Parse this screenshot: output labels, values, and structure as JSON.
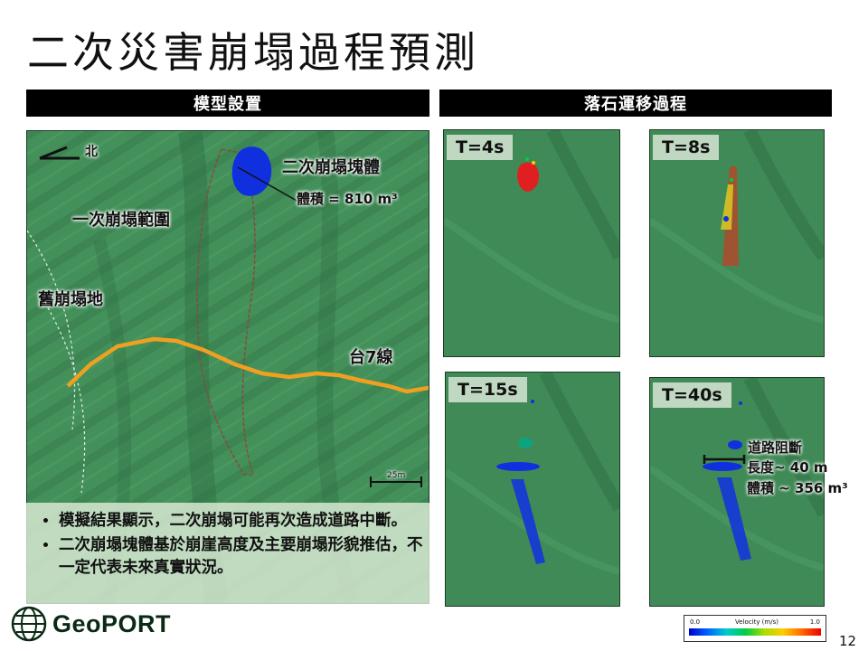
{
  "slide": {
    "title": "二次災害崩塌過程預測",
    "page_number": "12"
  },
  "left": {
    "header": "模型設置",
    "north_label": "北",
    "collapse_block_label": "二次崩塌塊體",
    "volume_label": "體積 = 810 m³",
    "first_collapse_label": "一次崩塌範圍",
    "old_landslide_label": "舊崩塌地",
    "road_label": "台7線",
    "scale_label": "25m",
    "bullets": [
      "模擬結果顯示，二次崩塌可能再次造成道路中斷。",
      "二次崩塌塊體基於崩崖高度及主要崩塌形貌推估，不一定代表未來真實狀況。"
    ]
  },
  "right": {
    "header": "落石運移過程",
    "frames": [
      {
        "label": "T=4s"
      },
      {
        "label": "T=8s"
      },
      {
        "label": "T=15s"
      },
      {
        "label": "T=40s"
      }
    ],
    "blockage": {
      "line1": "道路阻斷",
      "line2": "長度~ 40 m",
      "line3": "體積 ~ 356 m³"
    }
  },
  "legend": {
    "min": "0.0",
    "title": "Velocity (m/s)",
    "max": "1.0"
  },
  "logo": {
    "text": "GeoPORT"
  },
  "colors": {
    "terrain": "#3f8a56",
    "road": "#f0a020",
    "block": "#1030e0",
    "fast": "#e02020"
  }
}
